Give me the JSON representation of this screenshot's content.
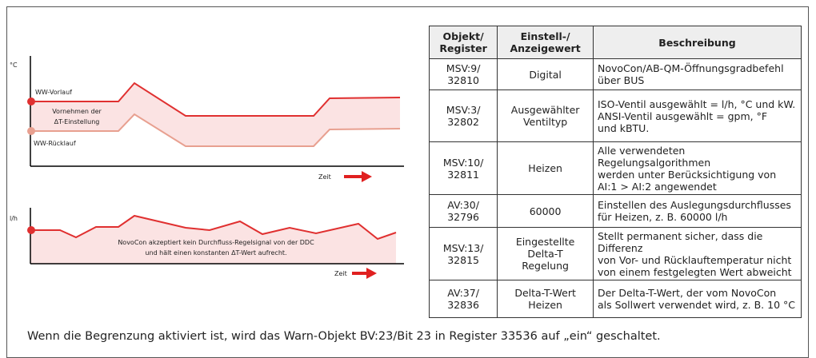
{
  "diagram": {
    "top": {
      "unit": "°C",
      "upper_label": "WW-Vorlauf",
      "center_label": [
        "Vornehmen der",
        "ΔT-Einstellung"
      ],
      "lower_label": "WW-Rücklauf",
      "x_label": "Zeit"
    },
    "bottom": {
      "unit": "l/h",
      "note": [
        "NovoCon akzeptiert kein Durchfluss-Regelsignal von der DDC",
        "und hält einen konstanten ΔT-Wert aufrecht."
      ],
      "x_label": "Zeit"
    }
  },
  "table": {
    "header": [
      [
        "Objekt/",
        "Register"
      ],
      [
        "Einstell-/",
        "Anzeigewert"
      ],
      [
        "Beschreibung"
      ]
    ],
    "rows": [
      [
        [
          "MSV:9/",
          "32810"
        ],
        [
          "Digital"
        ],
        [
          "NovoCon/AB-QM-Öffnungsgradbefehl",
          "über BUS"
        ]
      ],
      [
        [
          "MSV:3/",
          "32802"
        ],
        [
          "Ausgewählter",
          "Ventiltyp"
        ],
        [
          "ISO-Ventil ausgewählt = l/h, °C und kW.",
          "ANSI-Ventil ausgewählt = gpm, °F",
          "und kBTU."
        ]
      ],
      [
        [
          "MSV:10/",
          "32811"
        ],
        [
          "Heizen"
        ],
        [
          "Alle verwendeten Regelungsalgorithmen",
          "werden unter Berücksichtigung von",
          "AI:1 > AI:2 angewendet"
        ]
      ],
      [
        [
          "AV:30/",
          "32796"
        ],
        [
          "60000"
        ],
        [
          "Einstellen des Auslegungsdurchflusses",
          "für Heizen, z. B. 60000 l/h"
        ]
      ],
      [
        [
          "MSV:13/",
          "32815"
        ],
        [
          "Eingestellte",
          "Delta-T",
          "Regelung"
        ],
        [
          "Stellt permanent sicher, dass die Differenz",
          "von Vor- und Rücklauftemperatur nicht",
          "von einem festgelegten Wert abweicht"
        ]
      ],
      [
        [
          "AV:37/",
          "32836"
        ],
        [
          "Delta-T-Wert",
          "Heizen"
        ],
        [
          "Der Delta-T-Wert, der vom NovoCon",
          "als Sollwert verwendet wird, z. B. 10 °C"
        ]
      ]
    ]
  },
  "footer": "Wenn die Begrenzung aktiviert ist, wird das Warn-Objekt BV:23/Bit 23 in Register 33536 auf „ein“ geschaltet."
}
